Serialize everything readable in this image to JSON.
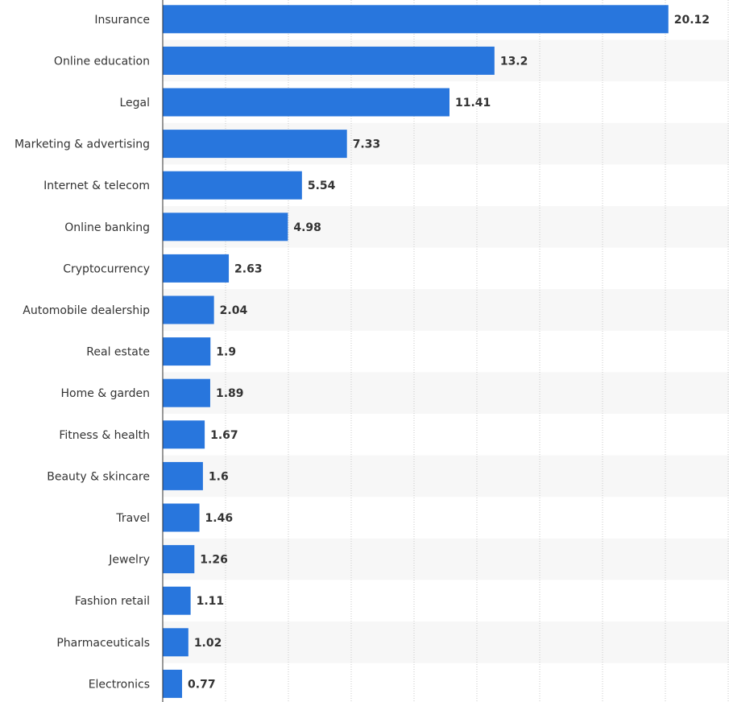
{
  "chart_data": {
    "type": "bar",
    "orientation": "horizontal",
    "categories": [
      "Insurance",
      "Online education",
      "Legal",
      "Marketing & advertising",
      "Internet & telecom",
      "Online banking",
      "Cryptocurrency",
      "Automobile dealership",
      "Real estate",
      "Home & garden",
      "Fitness & health",
      "Beauty & skincare",
      "Travel",
      "Jewelry",
      "Fashion retail",
      "Pharmaceuticals",
      "Electronics"
    ],
    "values": [
      20.12,
      13.2,
      11.41,
      7.33,
      5.54,
      4.98,
      2.63,
      2.04,
      1.9,
      1.89,
      1.67,
      1.6,
      1.46,
      1.26,
      1.11,
      1.02,
      0.77
    ],
    "value_labels": [
      "20.12",
      "13.2",
      "11.41",
      "7.33",
      "5.54",
      "4.98",
      "2.63",
      "2.04",
      "1.9",
      "1.89",
      "1.67",
      "1.6",
      "1.46",
      "1.26",
      "1.11",
      "1.02",
      "0.77"
    ],
    "xlim": [
      0,
      22.5
    ],
    "grid": true,
    "colors": {
      "bar": "#2876dd",
      "band": "#f7f7f7",
      "grid": "#c8c8c8",
      "axis": "#333333"
    }
  }
}
